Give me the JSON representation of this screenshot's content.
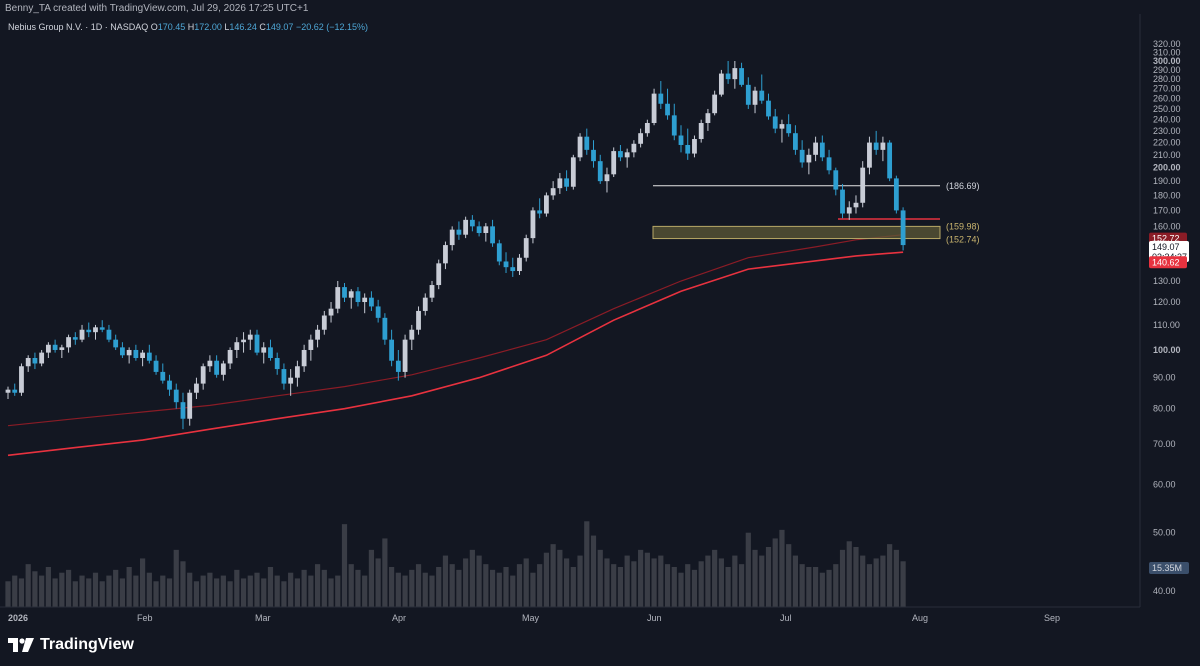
{
  "header": {
    "credit": "Benny_TA created with TradingView.com, Jul 29, 2026 17:25 UTC+1"
  },
  "legend": {
    "symbol": "Nebius Group N.V. · 1D · NASDAQ",
    "open_label": "O",
    "open": "170.45",
    "high_label": "H",
    "high": "172.00",
    "low_label": "L",
    "low": "146.24",
    "close_label": "C",
    "close": "149.07",
    "change": "−20.62 (−12.15%)"
  },
  "brand": {
    "name": "TradingView"
  },
  "colors": {
    "background": "#131722",
    "up_candle": "#c8ccd6",
    "down_candle": "#2e9fd1",
    "ma_fast": "#e8323f",
    "ma_slow": "#8a1c26",
    "resistance_line": "#e6e6e6",
    "support_line": "#e8323f",
    "zone_fill": "#5e5a37",
    "zone_border": "#b8a866",
    "volume": "#3a3d46"
  },
  "price_labels": {
    "resistance": "(186.69)",
    "zone_top": "(159.98)",
    "zone_bottom": "(152.74)",
    "ma_slow_value": "152.72",
    "last_price": "149.07",
    "countdown": "03:34:37",
    "ma_fast_value": "140.62",
    "volume_value": "15.35M"
  },
  "chart_data": {
    "type": "candlestick",
    "scale": "log",
    "ylim": [
      35,
      320
    ],
    "y_ticks": [
      "320.00",
      "310.00",
      "300.00",
      "290.00",
      "280.00",
      "270.00",
      "260.00",
      "250.00",
      "240.00",
      "230.00",
      "220.00",
      "210.00",
      "200.00",
      "190.00",
      "180.00",
      "170.00",
      "160.00",
      "150.00",
      "140.00",
      "130.00",
      "120.00",
      "110.00",
      "100.00",
      "90.00",
      "80.00",
      "70.00",
      "60.00",
      "50.00",
      "40.00"
    ],
    "x_ticks": [
      "2026",
      "Feb",
      "Mar",
      "Apr",
      "May",
      "Jun",
      "Jul",
      "Aug",
      "Sep"
    ],
    "x_ticks_bold": [
      "2026"
    ],
    "levels": {
      "resistance": 186.69,
      "support": 164.5,
      "zone_top": 159.98,
      "zone_bottom": 152.74
    },
    "candles": [
      [
        85,
        87,
        83,
        86
      ],
      [
        86,
        88,
        84,
        85
      ],
      [
        85,
        95,
        84,
        94
      ],
      [
        94,
        98,
        92,
        97
      ],
      [
        97,
        99,
        93,
        95
      ],
      [
        95,
        100,
        94,
        99
      ],
      [
        99,
        103,
        97,
        102
      ],
      [
        102,
        104,
        99,
        100
      ],
      [
        100,
        102,
        97,
        101
      ],
      [
        101,
        106,
        99,
        105
      ],
      [
        105,
        107,
        102,
        104
      ],
      [
        104,
        110,
        103,
        108
      ],
      [
        108,
        111,
        105,
        107
      ],
      [
        107,
        110,
        104,
        109
      ],
      [
        109,
        112,
        107,
        108
      ],
      [
        108,
        110,
        103,
        104
      ],
      [
        104,
        106,
        100,
        101
      ],
      [
        101,
        103,
        97,
        98
      ],
      [
        98,
        101,
        95,
        100
      ],
      [
        100,
        102,
        96,
        97
      ],
      [
        97,
        100,
        94,
        99
      ],
      [
        99,
        102,
        95,
        96
      ],
      [
        96,
        98,
        91,
        92
      ],
      [
        92,
        95,
        88,
        89
      ],
      [
        89,
        91,
        84,
        86
      ],
      [
        86,
        88,
        80,
        82
      ],
      [
        82,
        85,
        74,
        77
      ],
      [
        77,
        86,
        75,
        85
      ],
      [
        85,
        90,
        83,
        88
      ],
      [
        88,
        95,
        86,
        94
      ],
      [
        94,
        98,
        92,
        96
      ],
      [
        96,
        98,
        90,
        91
      ],
      [
        91,
        96,
        89,
        95
      ],
      [
        95,
        101,
        93,
        100
      ],
      [
        100,
        105,
        97,
        103
      ],
      [
        103,
        107,
        99,
        104
      ],
      [
        104,
        108,
        100,
        106
      ],
      [
        106,
        108,
        98,
        99
      ],
      [
        99,
        103,
        95,
        101
      ],
      [
        101,
        104,
        96,
        97
      ],
      [
        97,
        99,
        91,
        93
      ],
      [
        93,
        95,
        86,
        88
      ],
      [
        88,
        93,
        84,
        90
      ],
      [
        90,
        96,
        87,
        94
      ],
      [
        94,
        102,
        92,
        100
      ],
      [
        100,
        106,
        96,
        104
      ],
      [
        104,
        110,
        101,
        108
      ],
      [
        108,
        116,
        106,
        114
      ],
      [
        114,
        120,
        111,
        117
      ],
      [
        117,
        130,
        115,
        127
      ],
      [
        127,
        129,
        120,
        122
      ],
      [
        122,
        126,
        117,
        125
      ],
      [
        125,
        127,
        118,
        120
      ],
      [
        120,
        124,
        115,
        122
      ],
      [
        122,
        125,
        116,
        118
      ],
      [
        118,
        121,
        111,
        113
      ],
      [
        113,
        115,
        102,
        104
      ],
      [
        104,
        108,
        94,
        96
      ],
      [
        96,
        100,
        89,
        92
      ],
      [
        92,
        106,
        90,
        104
      ],
      [
        104,
        110,
        100,
        108
      ],
      [
        108,
        118,
        106,
        116
      ],
      [
        116,
        124,
        114,
        122
      ],
      [
        122,
        130,
        120,
        128
      ],
      [
        128,
        141,
        126,
        139
      ],
      [
        139,
        151,
        136,
        149
      ],
      [
        149,
        160,
        146,
        158
      ],
      [
        158,
        163,
        152,
        155
      ],
      [
        155,
        166,
        153,
        164
      ],
      [
        164,
        167,
        157,
        160
      ],
      [
        160,
        163,
        154,
        156
      ],
      [
        156,
        162,
        151,
        160
      ],
      [
        160,
        164,
        148,
        150
      ],
      [
        150,
        152,
        138,
        140
      ],
      [
        140,
        145,
        134,
        137
      ],
      [
        137,
        142,
        132,
        135
      ],
      [
        135,
        144,
        133,
        142
      ],
      [
        142,
        155,
        140,
        153
      ],
      [
        153,
        172,
        150,
        170
      ],
      [
        170,
        178,
        165,
        168
      ],
      [
        168,
        182,
        166,
        180
      ],
      [
        180,
        190,
        177,
        185
      ],
      [
        185,
        196,
        181,
        192
      ],
      [
        192,
        198,
        183,
        186
      ],
      [
        186,
        210,
        184,
        208
      ],
      [
        208,
        228,
        205,
        225
      ],
      [
        225,
        232,
        210,
        214
      ],
      [
        214,
        222,
        200,
        205
      ],
      [
        205,
        210,
        188,
        190
      ],
      [
        190,
        200,
        182,
        195
      ],
      [
        195,
        216,
        193,
        213
      ],
      [
        213,
        218,
        205,
        208
      ],
      [
        208,
        215,
        200,
        212
      ],
      [
        212,
        222,
        208,
        219
      ],
      [
        219,
        232,
        216,
        228
      ],
      [
        228,
        240,
        225,
        237
      ],
      [
        237,
        270,
        235,
        265
      ],
      [
        265,
        278,
        250,
        255
      ],
      [
        255,
        270,
        240,
        244
      ],
      [
        244,
        255,
        222,
        226
      ],
      [
        226,
        235,
        212,
        218
      ],
      [
        218,
        232,
        206,
        211
      ],
      [
        211,
        226,
        208,
        223
      ],
      [
        223,
        240,
        220,
        237
      ],
      [
        237,
        250,
        230,
        246
      ],
      [
        246,
        268,
        244,
        264
      ],
      [
        264,
        290,
        262,
        286
      ],
      [
        286,
        300,
        275,
        280
      ],
      [
        280,
        300,
        270,
        292
      ],
      [
        292,
        298,
        272,
        274
      ],
      [
        274,
        282,
        250,
        254
      ],
      [
        254,
        272,
        246,
        268
      ],
      [
        268,
        285,
        255,
        258
      ],
      [
        258,
        265,
        240,
        243
      ],
      [
        243,
        250,
        228,
        232
      ],
      [
        232,
        240,
        220,
        236
      ],
      [
        236,
        245,
        225,
        228
      ],
      [
        228,
        235,
        210,
        214
      ],
      [
        214,
        222,
        200,
        204
      ],
      [
        204,
        215,
        195,
        210
      ],
      [
        210,
        225,
        205,
        220
      ],
      [
        220,
        226,
        205,
        208
      ],
      [
        208,
        214,
        195,
        198
      ],
      [
        198,
        200,
        180,
        184
      ],
      [
        184,
        188,
        165,
        168
      ],
      [
        168,
        176,
        164,
        172
      ],
      [
        172,
        180,
        168,
        175
      ],
      [
        175,
        205,
        172,
        200
      ],
      [
        200,
        225,
        195,
        220
      ],
      [
        220,
        230,
        210,
        214
      ],
      [
        214,
        225,
        205,
        220
      ],
      [
        220,
        222,
        190,
        192
      ],
      [
        192,
        194,
        168,
        170
      ],
      [
        170,
        172,
        146,
        149
      ]
    ],
    "ma_fast": [
      [
        0,
        67
      ],
      [
        10,
        69
      ],
      [
        20,
        71
      ],
      [
        30,
        74
      ],
      [
        40,
        77
      ],
      [
        50,
        80
      ],
      [
        60,
        84
      ],
      [
        70,
        90
      ],
      [
        80,
        98
      ],
      [
        90,
        112
      ],
      [
        100,
        125
      ],
      [
        110,
        136
      ],
      [
        126,
        143
      ],
      [
        133,
        145
      ]
    ],
    "ma_slow": [
      [
        0,
        75
      ],
      [
        10,
        77
      ],
      [
        20,
        79
      ],
      [
        30,
        81
      ],
      [
        40,
        84
      ],
      [
        50,
        87
      ],
      [
        60,
        91
      ],
      [
        70,
        97
      ],
      [
        80,
        104
      ],
      [
        90,
        117
      ],
      [
        100,
        130
      ],
      [
        110,
        142
      ],
      [
        120,
        148
      ],
      [
        126,
        152
      ],
      [
        133,
        155
      ]
    ],
    "volume": [
      18,
      22,
      20,
      30,
      25,
      22,
      28,
      20,
      24,
      26,
      18,
      22,
      20,
      24,
      18,
      22,
      26,
      20,
      28,
      22,
      34,
      24,
      18,
      22,
      20,
      40,
      32,
      24,
      18,
      22,
      24,
      20,
      22,
      18,
      26,
      20,
      22,
      24,
      20,
      28,
      22,
      18,
      24,
      20,
      26,
      22,
      30,
      26,
      20,
      22,
      58,
      30,
      26,
      22,
      40,
      34,
      48,
      28,
      24,
      22,
      26,
      30,
      24,
      22,
      28,
      36,
      30,
      26,
      34,
      40,
      36,
      30,
      26,
      24,
      28,
      22,
      30,
      34,
      24,
      30,
      38,
      44,
      40,
      34,
      28,
      36,
      60,
      50,
      40,
      34,
      30,
      28,
      36,
      32,
      40,
      38,
      34,
      36,
      30,
      28,
      24,
      30,
      26,
      32,
      36,
      40,
      34,
      28,
      36,
      30,
      52,
      40,
      36,
      42,
      48,
      54,
      44,
      36,
      30,
      28,
      28,
      24,
      26,
      30,
      40,
      46,
      42,
      36,
      30,
      34,
      36,
      44,
      40,
      32
    ]
  }
}
